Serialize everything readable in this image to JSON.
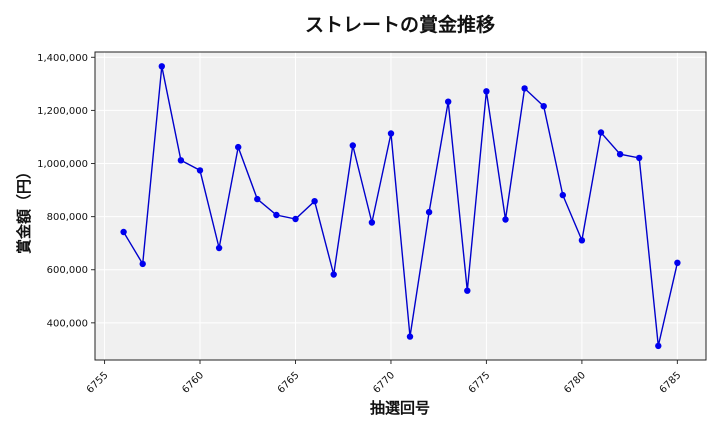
{
  "chart_data": {
    "type": "line",
    "title": "ストレートの賞金推移",
    "xlabel": "抽選回号",
    "ylabel": "賞金額（円）",
    "xlim": [
      6754.5,
      6786.5
    ],
    "ylim": [
      260000,
      1420000
    ],
    "xticks": [
      6755,
      6760,
      6765,
      6770,
      6775,
      6780,
      6785
    ],
    "yticks": [
      400000,
      600000,
      800000,
      1000000,
      1200000,
      1400000
    ],
    "grid": true,
    "colors": {
      "line": "#0000cc",
      "marker": "#0000ee",
      "plot_background": "#f0f0f0",
      "grid": "#ffffff"
    },
    "series": [
      {
        "x": [
          6756,
          6757,
          6758,
          6759,
          6760,
          6761,
          6762,
          6763,
          6764,
          6765,
          6766,
          6767,
          6768,
          6769,
          6770,
          6771,
          6772,
          6773,
          6774,
          6775,
          6776,
          6777,
          6778,
          6779,
          6780,
          6781,
          6782,
          6783,
          6784,
          6785
        ],
        "y": [
          742000,
          622000,
          1366000,
          1012000,
          974000,
          682000,
          1062000,
          866000,
          806000,
          791000,
          858000,
          582000,
          1068000,
          778000,
          1113000,
          348000,
          817000,
          1233000,
          521000,
          1272000,
          789000,
          1283000,
          1216000,
          881000,
          711000,
          1117000,
          1035000,
          1021000,
          313000,
          626000
        ]
      }
    ]
  }
}
